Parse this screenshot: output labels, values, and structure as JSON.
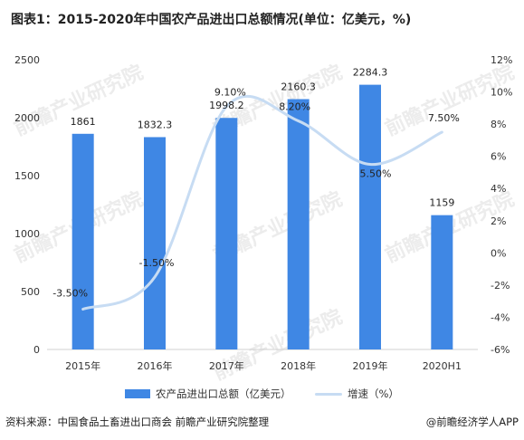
{
  "title": "图表1：2015-2020年中国农产品进出口总额情况(单位：亿美元，%)",
  "source": "资料来源：中国食品土畜进出口商会 前瞻产业研究院整理",
  "brand": "@前瞻经济学人APP",
  "watermark": "前瞻产业研究院",
  "chart_data": {
    "type": "bar",
    "categories": [
      "2015年",
      "2016年",
      "2017年",
      "2018年",
      "2019年",
      "2020H1"
    ],
    "series": [
      {
        "name": "农产品进出口总额（亿美元）",
        "type": "bar",
        "axis": "left",
        "values": [
          1861,
          1832.3,
          1998.2,
          2160.3,
          2284.3,
          1159
        ],
        "labels": [
          "1861",
          "1832.3",
          "1998.2",
          "2160.3",
          "2284.3",
          "1159"
        ],
        "color": "#3f87e4"
      },
      {
        "name": "增速（%）",
        "type": "line",
        "axis": "right",
        "values": [
          -3.5,
          -1.5,
          9.1,
          8.2,
          5.5,
          7.5
        ],
        "labels": [
          "-3.50%",
          "-1.50%",
          "9.10%",
          "8.20%",
          "5.50%",
          "7.50%"
        ],
        "color": "#c7dcf3"
      }
    ],
    "y_left": {
      "min": 0,
      "max": 2500,
      "ticks": [
        "0",
        "500",
        "1000",
        "1500",
        "2000",
        "2500"
      ]
    },
    "y_right": {
      "min": -6,
      "max": 12,
      "ticks": [
        "-6%",
        "-4%",
        "-2%",
        "0%",
        "2%",
        "4%",
        "6%",
        "8%",
        "10%",
        "12%"
      ]
    },
    "grid": false,
    "legend_position": "bottom"
  }
}
